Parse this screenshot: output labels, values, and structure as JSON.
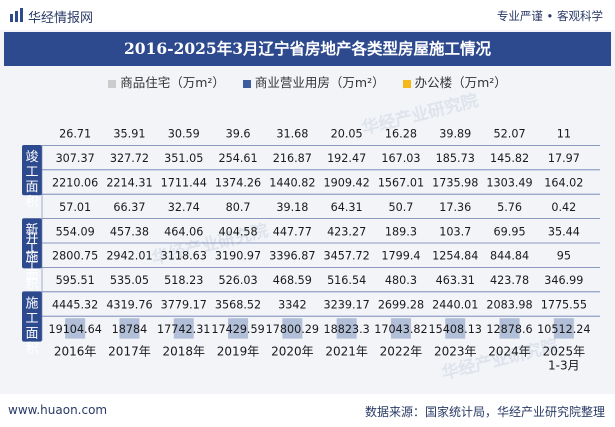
{
  "header": {
    "brand": "华经情报网",
    "slogan": "专业严谨 • 客观科学"
  },
  "chart_data": {
    "type": "table",
    "title": "2016-2025年3月辽宁省房地产各类型房屋施工情况",
    "categories": [
      "2016年",
      "2017年",
      "2018年",
      "2019年",
      "2020年",
      "2021年",
      "2022年",
      "2023年",
      "2024年",
      "2025年\n1-3月"
    ],
    "series_legend": [
      {
        "name": "商品住宅（万m²）",
        "color": "#cccccc"
      },
      {
        "name": "商业营业用房（万m²）",
        "color": "#3d5c9e"
      },
      {
        "name": "办公楼（万m²）",
        "color": "#f2b918"
      }
    ],
    "groups": [
      {
        "label": "竣工面积",
        "rows": [
          {
            "series": "办公楼（万m²）",
            "values": [
              26.71,
              35.91,
              30.59,
              39.6,
              31.68,
              20.05,
              16.28,
              39.89,
              52.07,
              11
            ]
          },
          {
            "series": "商业营业用房（万m²）",
            "values": [
              307.37,
              327.72,
              351.05,
              254.61,
              216.87,
              192.47,
              167.03,
              185.73,
              145.82,
              17.97
            ]
          },
          {
            "series": "商品住宅（万m²）",
            "values": [
              2210.06,
              2214.31,
              1711.44,
              1374.26,
              1440.82,
              1909.42,
              1567.01,
              1735.98,
              1303.49,
              164.02
            ]
          }
        ]
      },
      {
        "label": "新开工施工面积",
        "rows": [
          {
            "series": "办公楼（万m²）",
            "values": [
              57.01,
              66.37,
              32.74,
              80.7,
              39.18,
              64.31,
              50.7,
              17.36,
              5.76,
              0.42
            ]
          },
          {
            "series": "商业营业用房（万m²）",
            "values": [
              554.09,
              457.38,
              464.06,
              404.58,
              447.77,
              423.27,
              189.3,
              103.7,
              69.95,
              35.44
            ]
          },
          {
            "series": "商品住宅（万m²）",
            "values": [
              2800.75,
              2942.01,
              3118.63,
              3190.97,
              3396.87,
              3457.72,
              1799.4,
              1254.84,
              844.84,
              95
            ]
          }
        ]
      },
      {
        "label": "施工面积",
        "rows": [
          {
            "series": "办公楼（万m²）",
            "values": [
              595.51,
              535.05,
              518.23,
              526.03,
              468.59,
              516.54,
              480.3,
              463.31,
              423.78,
              346.99
            ]
          },
          {
            "series": "商业营业用房（万m²）",
            "values": [
              4445.32,
              4319.76,
              3779.17,
              3568.52,
              3342,
              3239.17,
              2699.28,
              2440.01,
              2083.98,
              1775.55
            ]
          },
          {
            "series": "商品住宅（万m²）",
            "values": [
              19104.64,
              18784,
              17742.31,
              17429.59,
              17800.29,
              18823.3,
              17043.82,
              15408.13,
              12878.6,
              10512.24
            ]
          }
        ]
      }
    ]
  },
  "footer": {
    "url": "www.huaon.com",
    "source": "数据来源：国家统计局，华经产业研究院整理"
  },
  "watermarks": [
    "华经产业研究院",
    "华经产业研究院",
    "华经产业研究院"
  ],
  "colors": {
    "title_bg": "#2e4a8e",
    "group_label_bg": "#2e4a8e",
    "gridline": "#6b7db0"
  }
}
